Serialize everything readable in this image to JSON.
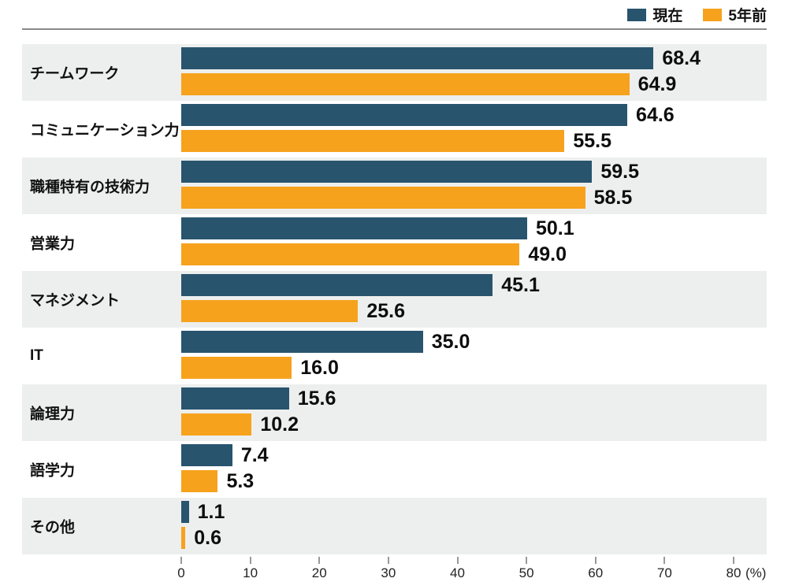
{
  "legend": {
    "items": [
      {
        "label": "現在",
        "color": "#28546E"
      },
      {
        "label": "5年前",
        "color": "#F6A21D"
      }
    ]
  },
  "axis": {
    "ticks": [
      "0",
      "10",
      "20",
      "30",
      "40",
      "50",
      "60",
      "70",
      "80"
    ],
    "unit": "(%)"
  },
  "chart_data": {
    "type": "bar",
    "orientation": "horizontal",
    "title": "",
    "categories": [
      "チームワーク",
      "コミュニケーション力",
      "職種特有の技術力",
      "営業力",
      "マネジメント",
      "IT",
      "論理力",
      "語学力",
      "その他"
    ],
    "series": [
      {
        "name": "現在",
        "color": "#28546E",
        "values": [
          68.4,
          64.6,
          59.5,
          50.1,
          45.1,
          35.0,
          15.6,
          7.4,
          1.1
        ]
      },
      {
        "name": "5年前",
        "color": "#F6A21D",
        "values": [
          64.9,
          55.5,
          58.5,
          49.0,
          25.6,
          16.0,
          10.2,
          5.3,
          0.6
        ]
      }
    ],
    "xlabel": "(%)",
    "xlim": [
      0,
      80
    ],
    "grid": false,
    "value_labels": true,
    "legend_position": "top-right",
    "row_band_color": "#EDEFEE"
  }
}
